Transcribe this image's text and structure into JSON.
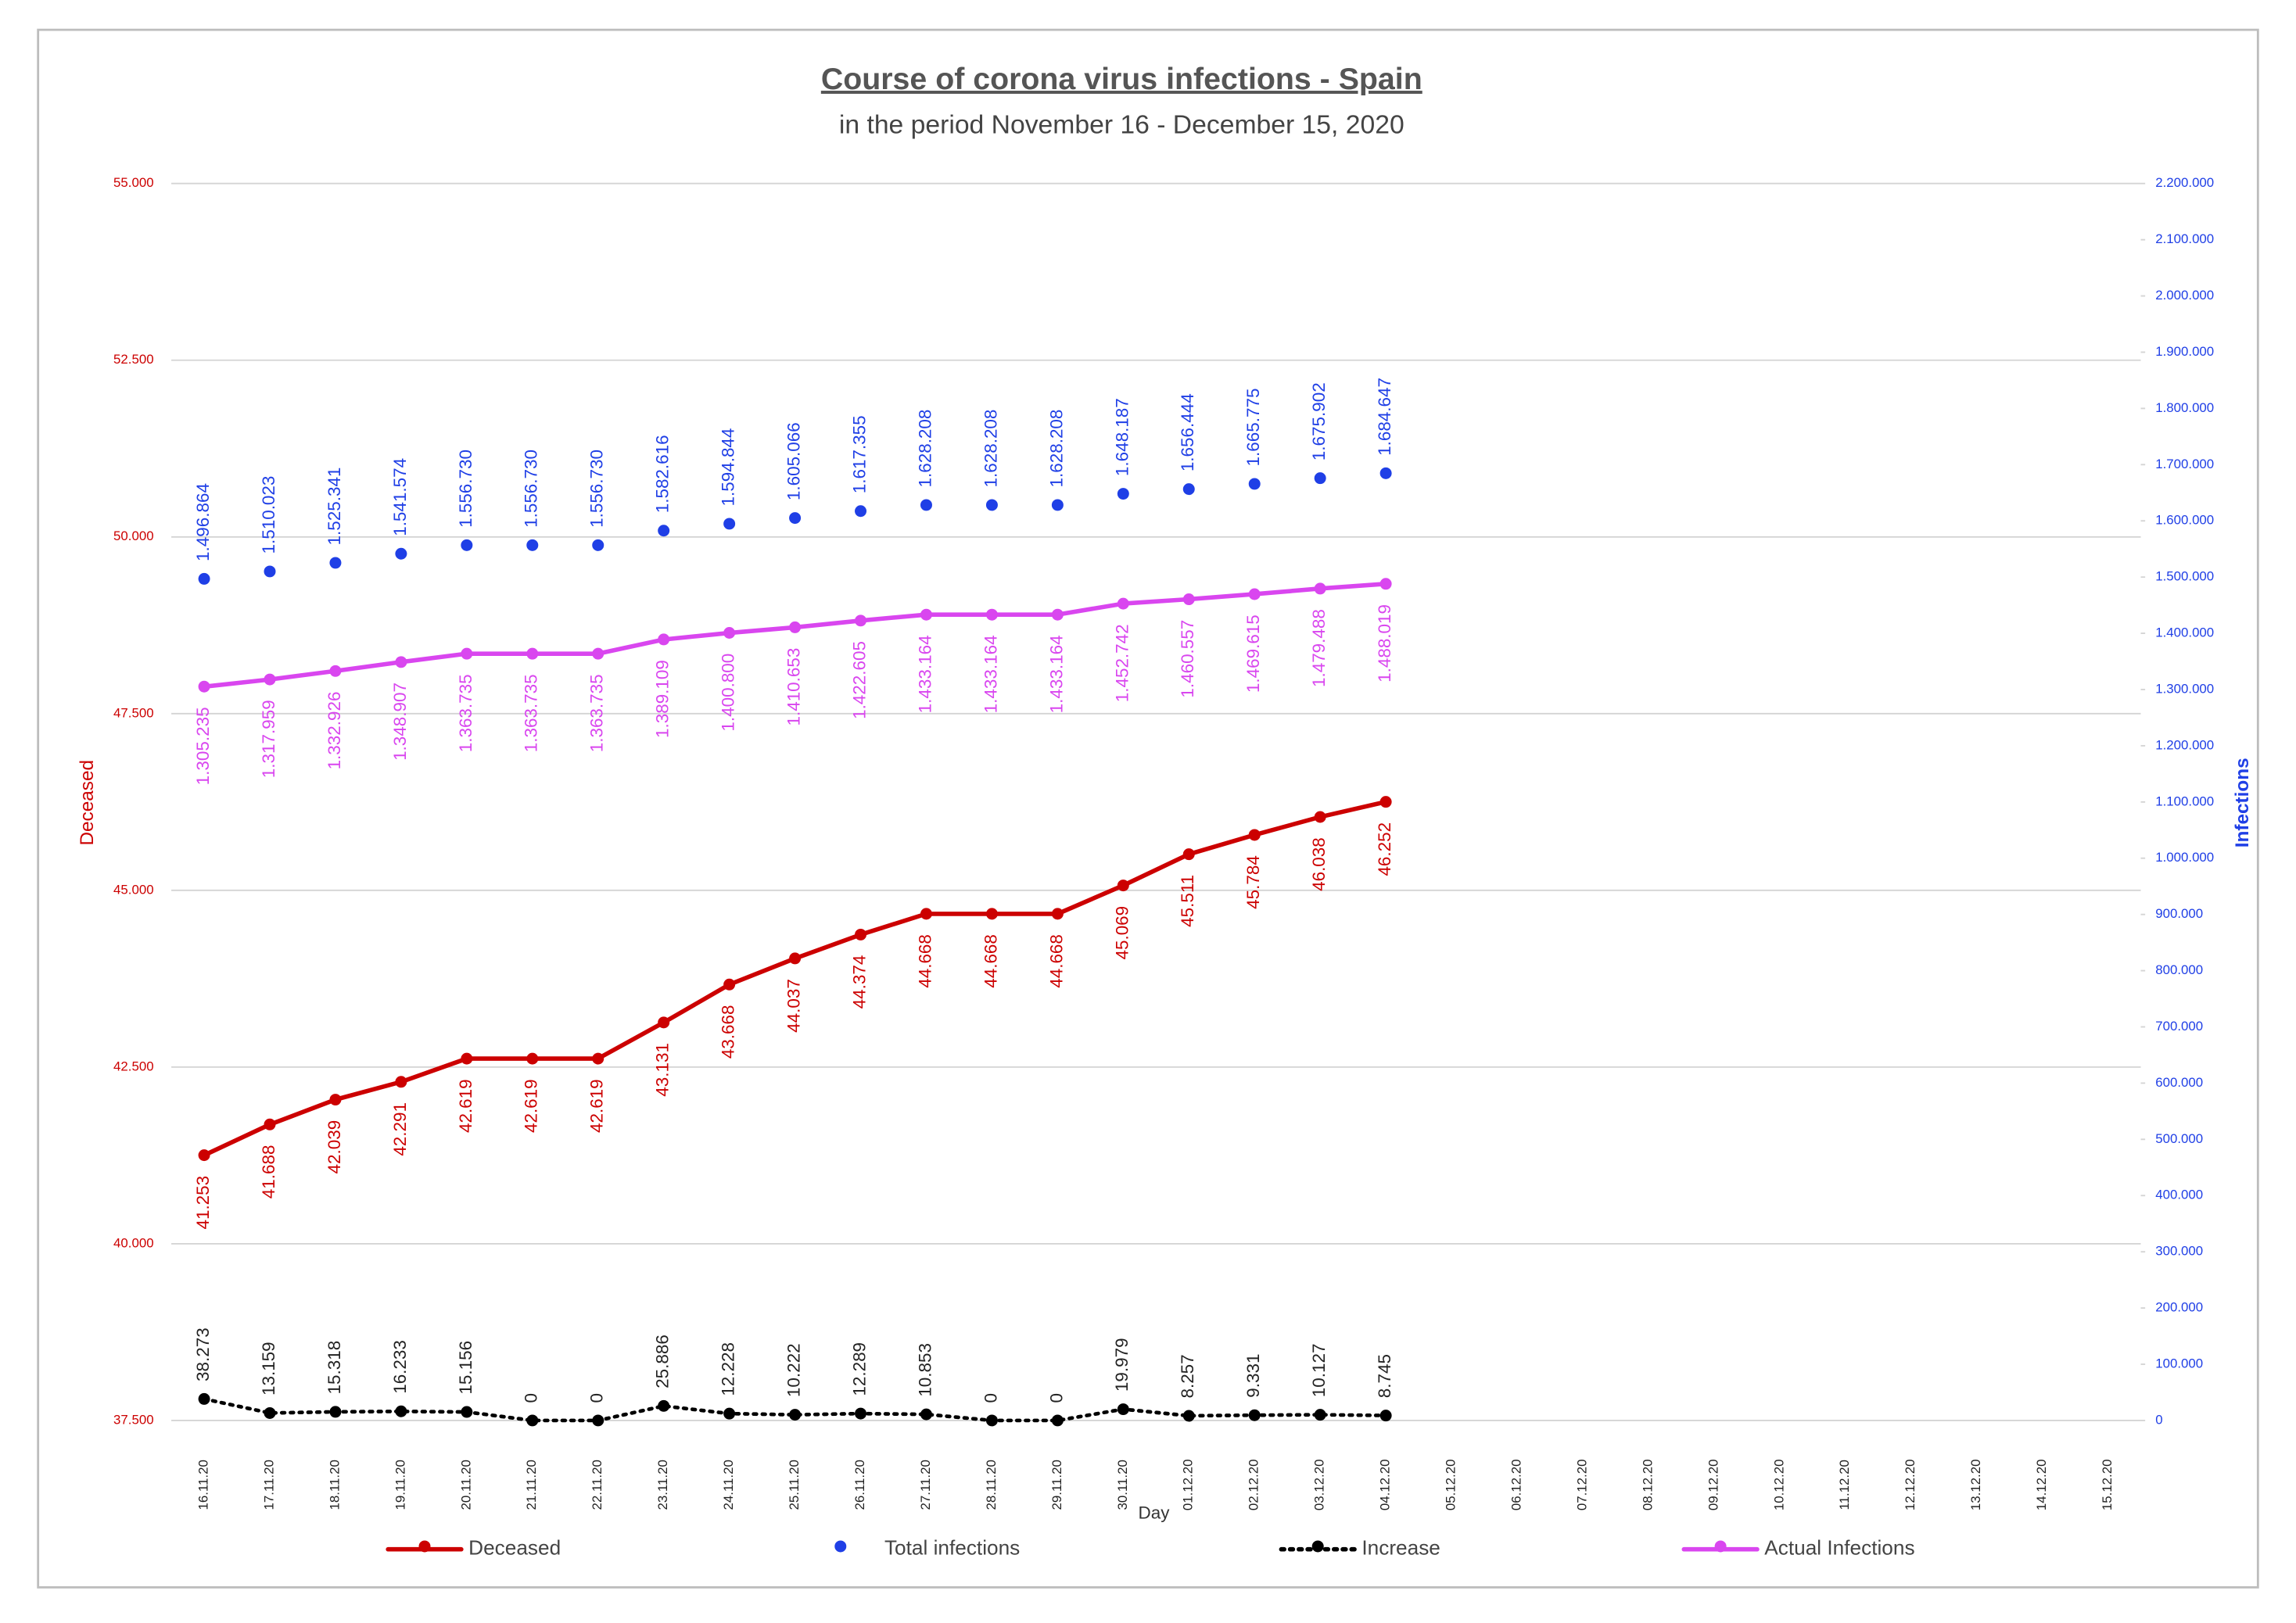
{
  "chart_data": {
    "type": "line",
    "title": "Course of corona virus infections - Spain",
    "subtitle": "in the period November 16 - December 15, 2020",
    "x_label": "Day",
    "y_label": "Deceased",
    "y2_label": "Infections",
    "categories": [
      "16.11.20",
      "17.11.20",
      "18.11.20",
      "19.11.20",
      "20.11.20",
      "21.11.20",
      "22.11.20",
      "23.11.20",
      "24.11.20",
      "25.11.20",
      "26.11.20",
      "27.11.20",
      "28.11.20",
      "29.11.20",
      "30.11.20",
      "01.12.20",
      "02.12.20",
      "03.12.20",
      "04.12.20",
      "05.12.20",
      "06.12.20",
      "07.12.20",
      "08.12.20",
      "09.12.20",
      "10.12.20",
      "11.12.20",
      "12.12.20",
      "13.12.20",
      "14.12.20",
      "15.12.20"
    ],
    "ylim": [
      37500,
      55000
    ],
    "yticks": [
      {
        "value": 37500,
        "label": "37.500"
      },
      {
        "value": 40000,
        "label": "40.000"
      },
      {
        "value": 42500,
        "label": "42.500"
      },
      {
        "value": 45000,
        "label": "45.000"
      },
      {
        "value": 47500,
        "label": "47.500"
      },
      {
        "value": 50000,
        "label": "50.000"
      },
      {
        "value": 52500,
        "label": "52.500"
      },
      {
        "value": 55000,
        "label": "55.000"
      }
    ],
    "y2lim": [
      0,
      2200000
    ],
    "y2ticks": [
      0,
      {
        "value": 100000,
        "label": "100.000"
      },
      {
        "value": 200000,
        "label": "200.000"
      },
      {
        "value": 300000,
        "label": "300.000"
      },
      {
        "value": 400000,
        "label": "400.000"
      },
      {
        "value": 500000,
        "label": "500.000"
      },
      {
        "value": 600000,
        "label": "600.000"
      },
      {
        "value": 700000,
        "label": "700.000"
      },
      {
        "value": 800000,
        "label": "800.000"
      },
      {
        "value": 900000,
        "label": "900.000"
      },
      {
        "value": 1000000,
        "label": "1.000.000"
      },
      {
        "value": 1100000,
        "label": "1.100.000"
      },
      {
        "value": 1200000,
        "label": "1.200.000"
      },
      {
        "value": 1300000,
        "label": "1.300.000"
      },
      {
        "value": 1400000,
        "label": "1.400.000"
      },
      {
        "value": 1500000,
        "label": "1.500.000"
      },
      {
        "value": 1600000,
        "label": "1.600.000"
      },
      {
        "value": 1700000,
        "label": "1.700.000"
      },
      {
        "value": 1800000,
        "label": "1.800.000"
      },
      {
        "value": 1900000,
        "label": "1.900.000"
      },
      {
        "value": 2000000,
        "label": "2.000.000"
      },
      {
        "value": 2100000,
        "label": "2.100.000"
      },
      {
        "value": 2200000,
        "label": "2.200.000"
      }
    ],
    "grid": true,
    "legend": "bottom",
    "series": [
      {
        "name": "Deceased",
        "color": "#cc0000",
        "mode": "lines+markers",
        "label_position": "below",
        "values": [
          41253,
          41688,
          42039,
          42291,
          42619,
          42619,
          42619,
          43131,
          43668,
          44037,
          44374,
          44668,
          44668,
          44668,
          45069,
          45511,
          45784,
          46038,
          46252,
          null,
          null,
          null,
          null,
          null,
          null,
          null,
          null,
          null,
          null,
          null
        ],
        "value_labels": [
          "41.253",
          "41.688",
          "42.039",
          "42.291",
          "42.619",
          "42.619",
          "42.619",
          "43.131",
          "43.668",
          "44.037",
          "44.374",
          "44.668",
          "44.668",
          "44.668",
          "45.069",
          "45.511",
          "45.784",
          "46.038",
          "46.252",
          null,
          null,
          null,
          null,
          null,
          null,
          null,
          null,
          null,
          null,
          null
        ]
      },
      {
        "name": "Total infections",
        "color": "#1f3fe6",
        "mode": "markers",
        "axis": "y2",
        "label_position": "above",
        "values": [
          1496864,
          1510023,
          1525341,
          1541574,
          1556730,
          1556730,
          1556730,
          1582616,
          1594844,
          1605066,
          1617355,
          1628208,
          1628208,
          1628208,
          1648187,
          1656444,
          1665775,
          1675902,
          1684647,
          null,
          null,
          null,
          null,
          null,
          null,
          null,
          null,
          null,
          null,
          null
        ],
        "value_labels": [
          "1.496.864",
          "1.510.023",
          "1.525.341",
          "1.541.574",
          "1.556.730",
          "1.556.730",
          "1.556.730",
          "1.582.616",
          "1.594.844",
          "1.605.066",
          "1.617.355",
          "1.628.208",
          "1.628.208",
          "1.628.208",
          "1.648.187",
          "1.656.444",
          "1.665.775",
          "1.675.902",
          "1.684.647",
          null,
          null,
          null,
          null,
          null,
          null,
          null,
          null,
          null,
          null,
          null
        ]
      },
      {
        "name": "Increase",
        "color": "#000000",
        "mode": "lines+markers",
        "dash": "dotted",
        "axis": "y2",
        "label_position": "above",
        "values": [
          38273,
          13159,
          15318,
          16233,
          15156,
          0,
          0,
          25886,
          12228,
          10222,
          12289,
          10853,
          0,
          0,
          19979,
          8257,
          9331,
          10127,
          8745,
          null,
          null,
          null,
          null,
          null,
          null,
          null,
          null,
          null,
          null,
          null
        ],
        "value_labels": [
          "38.273",
          "13.159",
          "15.318",
          "16.233",
          "15.156",
          "0",
          "0",
          "25.886",
          "12.228",
          "10.222",
          "12.289",
          "10.853",
          "0",
          "0",
          "19.979",
          "8.257",
          "9.331",
          "10.127",
          "8.745",
          null,
          null,
          null,
          null,
          null,
          null,
          null,
          null,
          null,
          null,
          null
        ]
      },
      {
        "name": "Actual Infections",
        "color": "#d946ef",
        "mode": "lines+markers",
        "axis": "y2",
        "label_position": "below",
        "values": [
          1305235,
          1317959,
          1332926,
          1348907,
          1363735,
          1363735,
          1363735,
          1389109,
          1400800,
          1410653,
          1422605,
          1433164,
          1433164,
          1433164,
          1452742,
          1460557,
          1469615,
          1479488,
          1488019,
          null,
          null,
          null,
          null,
          null,
          null,
          null,
          null,
          null,
          null,
          null
        ],
        "value_labels": [
          "1.305.235",
          "1.317.959",
          "1.332.926",
          "1.348.907",
          "1.363.735",
          "1.363.735",
          "1.363.735",
          "1.389.109",
          "1.400.800",
          "1.410.653",
          "1.422.605",
          "1.433.164",
          "1.433.164",
          "1.433.164",
          "1.452.742",
          "1.460.557",
          "1.469.615",
          "1.479.488",
          "1.488.019",
          null,
          null,
          null,
          null,
          null,
          null,
          null,
          null,
          null,
          null,
          null
        ]
      }
    ]
  }
}
